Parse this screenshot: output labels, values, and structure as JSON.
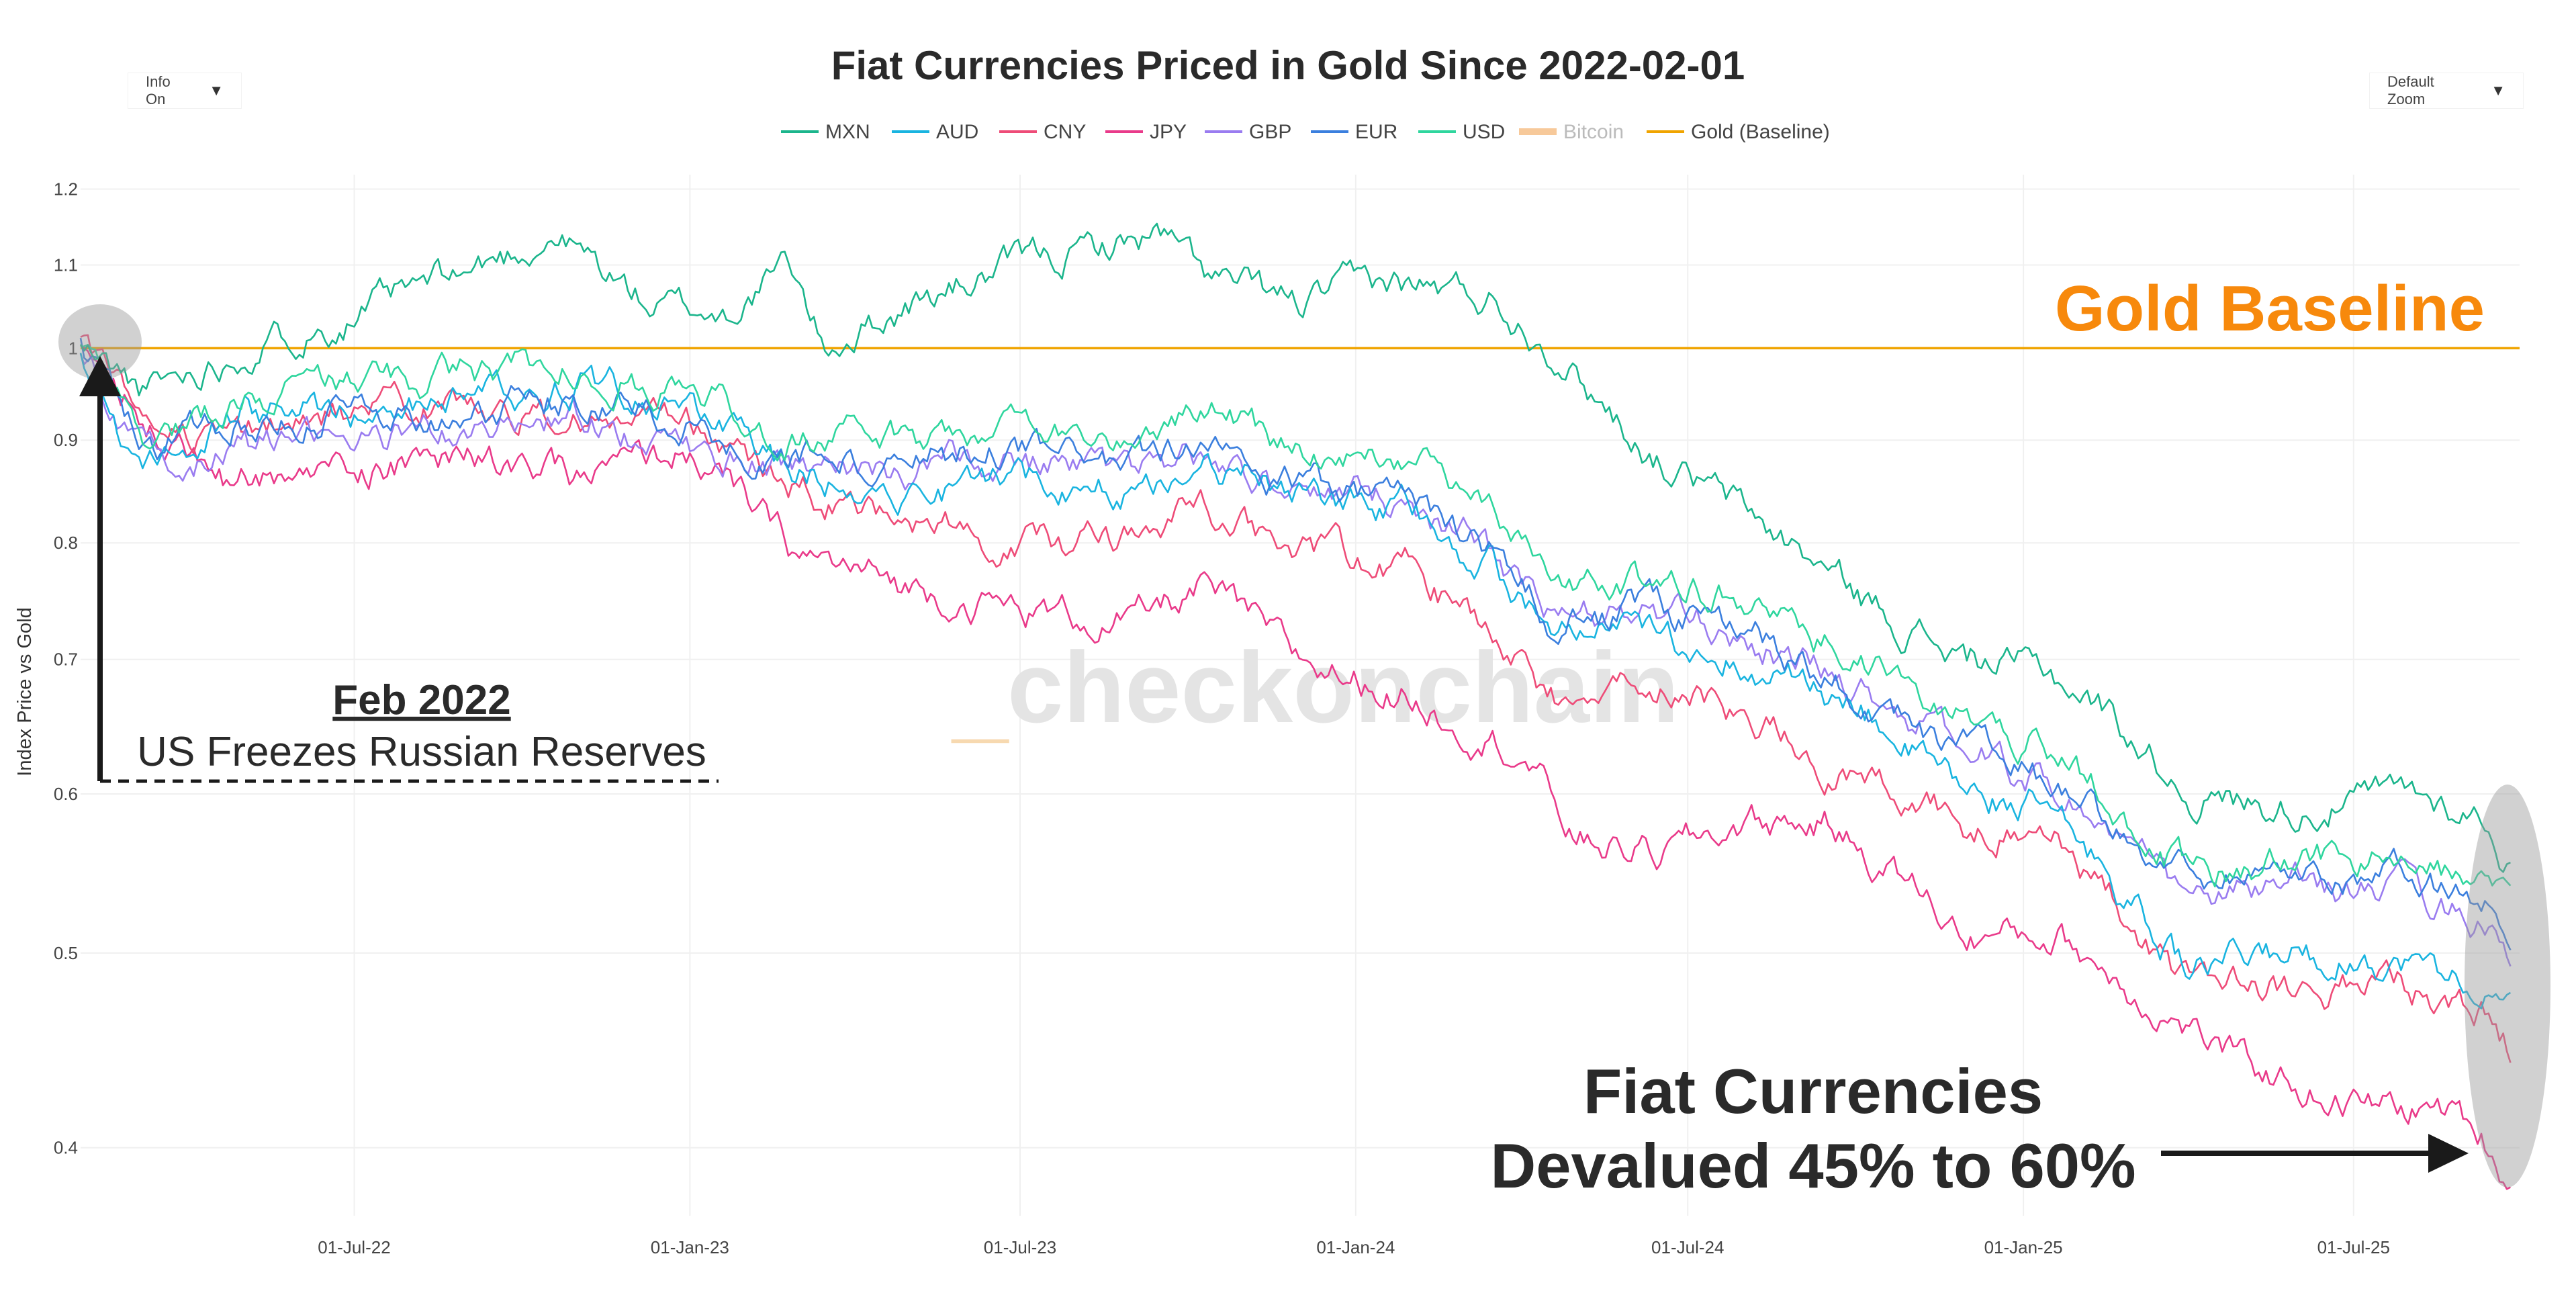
{
  "controls": {
    "info_label": "Info On",
    "zoom_label": "Default Zoom",
    "caret": "▼"
  },
  "chart_data": {
    "type": "line",
    "title": "Fiat Currencies Priced in Gold Since 2022-02-01",
    "xlabel": "",
    "ylabel": "Index Price vs Gold",
    "y_scale": "log",
    "ylim": [
      0.37,
      1.22
    ],
    "xlim": [
      "2022-02-01",
      "2025-09-30"
    ],
    "x_ticks": [
      {
        "date": "2022-07-01",
        "label": "01-Jul-22"
      },
      {
        "date": "2023-01-01",
        "label": "01-Jan-23"
      },
      {
        "date": "2023-07-01",
        "label": "01-Jul-23"
      },
      {
        "date": "2024-01-01",
        "label": "01-Jan-24"
      },
      {
        "date": "2024-07-01",
        "label": "01-Jul-24"
      },
      {
        "date": "2025-01-01",
        "label": "01-Jan-25"
      },
      {
        "date": "2025-07-01",
        "label": "01-Jul-25"
      }
    ],
    "y_ticks": [
      {
        "value": 1.2,
        "label": "1.2"
      },
      {
        "value": 1.1,
        "label": "1.1"
      },
      {
        "value": 1.0,
        "label": "1"
      },
      {
        "value": 0.9,
        "label": "0.9"
      },
      {
        "value": 0.8,
        "label": "0.8"
      },
      {
        "value": 0.7,
        "label": "0.7"
      },
      {
        "value": 0.6,
        "label": "0.6"
      },
      {
        "value": 0.5,
        "label": "0.5"
      },
      {
        "value": 0.4,
        "label": "0.4"
      }
    ],
    "series": [
      {
        "name": "MXN",
        "color": "#1bb58c",
        "seed": 11,
        "points": [
          [
            "2022-02-01",
            1.0
          ],
          [
            "2022-03-08",
            0.95
          ],
          [
            "2022-05-01",
            1.0
          ],
          [
            "2022-07-01",
            1.04
          ],
          [
            "2022-09-01",
            1.09
          ],
          [
            "2022-10-20",
            1.14
          ],
          [
            "2022-12-10",
            1.05
          ],
          [
            "2023-01-20",
            1.04
          ],
          [
            "2023-02-25",
            1.1
          ],
          [
            "2023-03-15",
            1.0
          ],
          [
            "2023-05-01",
            1.05
          ],
          [
            "2023-07-01",
            1.1
          ],
          [
            "2023-09-15",
            1.14
          ],
          [
            "2023-10-15",
            1.08
          ],
          [
            "2023-12-01",
            1.05
          ],
          [
            "2024-01-15",
            1.08
          ],
          [
            "2024-02-15",
            1.07
          ],
          [
            "2024-03-15",
            1.06
          ],
          [
            "2024-04-20",
            1.0
          ],
          [
            "2024-05-10",
            0.95
          ],
          [
            "2024-06-15",
            0.88
          ],
          [
            "2024-08-01",
            0.83
          ],
          [
            "2024-10-15",
            0.74
          ],
          [
            "2024-12-01",
            0.7
          ],
          [
            "2025-01-15",
            0.69
          ],
          [
            "2025-02-15",
            0.66
          ],
          [
            "2025-04-01",
            0.6
          ],
          [
            "2025-06-01",
            0.59
          ],
          [
            "2025-08-01",
            0.6
          ],
          [
            "2025-09-10",
            0.585
          ],
          [
            "2025-09-26",
            0.55
          ]
        ]
      },
      {
        "name": "AUD",
        "color": "#19b4e0",
        "seed": 22,
        "points": [
          [
            "2022-02-01",
            1.0
          ],
          [
            "2022-03-08",
            0.87
          ],
          [
            "2022-05-01",
            0.93
          ],
          [
            "2022-07-01",
            0.93
          ],
          [
            "2022-09-01",
            0.95
          ],
          [
            "2022-11-01",
            0.96
          ],
          [
            "2023-01-01",
            0.93
          ],
          [
            "2023-03-01",
            0.87
          ],
          [
            "2023-05-01",
            0.85
          ],
          [
            "2023-07-01",
            0.86
          ],
          [
            "2023-09-01",
            0.85
          ],
          [
            "2023-10-10",
            0.88
          ],
          [
            "2023-12-01",
            0.84
          ],
          [
            "2024-02-01",
            0.83
          ],
          [
            "2024-03-15",
            0.78
          ],
          [
            "2024-04-20",
            0.72
          ],
          [
            "2024-06-01",
            0.72
          ],
          [
            "2024-08-01",
            0.7
          ],
          [
            "2024-10-15",
            0.65
          ],
          [
            "2024-12-01",
            0.6
          ],
          [
            "2025-01-10",
            0.59
          ],
          [
            "2025-02-15",
            0.55
          ],
          [
            "2025-04-01",
            0.49
          ],
          [
            "2025-06-01",
            0.5
          ],
          [
            "2025-08-01",
            0.495
          ],
          [
            "2025-09-10",
            0.48
          ],
          [
            "2025-09-26",
            0.465
          ]
        ]
      },
      {
        "name": "CNY",
        "color": "#ee4c78",
        "seed": 33,
        "points": [
          [
            "2022-02-01",
            1.0
          ],
          [
            "2022-03-08",
            0.92
          ],
          [
            "2022-05-01",
            0.9
          ],
          [
            "2022-07-01",
            0.93
          ],
          [
            "2022-09-01",
            0.94
          ],
          [
            "2022-11-01",
            0.92
          ],
          [
            "2023-01-01",
            0.91
          ],
          [
            "2023-03-01",
            0.85
          ],
          [
            "2023-05-01",
            0.82
          ],
          [
            "2023-07-01",
            0.8
          ],
          [
            "2023-09-01",
            0.8
          ],
          [
            "2023-10-10",
            0.84
          ],
          [
            "2023-12-01",
            0.79
          ],
          [
            "2024-02-01",
            0.78
          ],
          [
            "2024-03-15",
            0.72
          ],
          [
            "2024-04-20",
            0.67
          ],
          [
            "2024-06-01",
            0.68
          ],
          [
            "2024-08-01",
            0.66
          ],
          [
            "2024-10-15",
            0.6
          ],
          [
            "2024-12-01",
            0.58
          ],
          [
            "2025-01-10",
            0.58
          ],
          [
            "2025-02-15",
            0.54
          ],
          [
            "2025-04-01",
            0.48
          ],
          [
            "2025-06-01",
            0.48
          ],
          [
            "2025-08-01",
            0.48
          ],
          [
            "2025-09-10",
            0.465
          ],
          [
            "2025-09-26",
            0.445
          ]
        ]
      },
      {
        "name": "JPY",
        "color": "#e93a8a",
        "seed": 44,
        "points": [
          [
            "2022-02-01",
            1.0
          ],
          [
            "2022-03-08",
            0.93
          ],
          [
            "2022-04-20",
            0.86
          ],
          [
            "2022-07-01",
            0.87
          ],
          [
            "2022-09-01",
            0.88
          ],
          [
            "2022-11-01",
            0.86
          ],
          [
            "2023-01-01",
            0.89
          ],
          [
            "2023-03-01",
            0.79
          ],
          [
            "2023-05-01",
            0.76
          ],
          [
            "2023-07-01",
            0.74
          ],
          [
            "2023-09-01",
            0.73
          ],
          [
            "2023-10-10",
            0.76
          ],
          [
            "2023-12-01",
            0.7
          ],
          [
            "2024-02-01",
            0.67
          ],
          [
            "2024-04-01",
            0.63
          ],
          [
            "2024-05-01",
            0.57
          ],
          [
            "2024-06-15",
            0.56
          ],
          [
            "2024-08-01",
            0.58
          ],
          [
            "2024-09-15",
            0.58
          ],
          [
            "2024-11-01",
            0.54
          ],
          [
            "2024-12-01",
            0.51
          ],
          [
            "2025-01-20",
            0.51
          ],
          [
            "2025-03-01",
            0.48
          ],
          [
            "2025-05-01",
            0.44
          ],
          [
            "2025-07-01",
            0.42
          ],
          [
            "2025-08-20",
            0.418
          ],
          [
            "2025-09-10",
            0.405
          ],
          [
            "2025-09-26",
            0.383
          ]
        ]
      },
      {
        "name": "GBP",
        "color": "#9a7cf0",
        "seed": 55,
        "points": [
          [
            "2022-02-01",
            1.0
          ],
          [
            "2022-03-08",
            0.88
          ],
          [
            "2022-05-01",
            0.89
          ],
          [
            "2022-07-01",
            0.9
          ],
          [
            "2022-09-01",
            0.91
          ],
          [
            "2022-11-01",
            0.92
          ],
          [
            "2023-01-01",
            0.89
          ],
          [
            "2023-03-01",
            0.87
          ],
          [
            "2023-05-01",
            0.87
          ],
          [
            "2023-07-01",
            0.88
          ],
          [
            "2023-09-01",
            0.86
          ],
          [
            "2023-10-10",
            0.88
          ],
          [
            "2023-12-01",
            0.85
          ],
          [
            "2024-02-01",
            0.84
          ],
          [
            "2024-03-15",
            0.79
          ],
          [
            "2024-04-20",
            0.73
          ],
          [
            "2024-06-01",
            0.74
          ],
          [
            "2024-08-01",
            0.72
          ],
          [
            "2024-10-15",
            0.67
          ],
          [
            "2024-12-01",
            0.63
          ],
          [
            "2025-01-10",
            0.61
          ],
          [
            "2025-02-15",
            0.58
          ],
          [
            "2025-04-01",
            0.53
          ],
          [
            "2025-06-01",
            0.54
          ],
          [
            "2025-08-01",
            0.535
          ],
          [
            "2025-09-10",
            0.52
          ],
          [
            "2025-09-26",
            0.5
          ]
        ]
      },
      {
        "name": "EUR",
        "color": "#3b7fde",
        "seed": 66,
        "points": [
          [
            "2022-02-01",
            1.0
          ],
          [
            "2022-03-08",
            0.89
          ],
          [
            "2022-05-01",
            0.92
          ],
          [
            "2022-07-01",
            0.93
          ],
          [
            "2022-09-01",
            0.93
          ],
          [
            "2022-11-01",
            0.95
          ],
          [
            "2023-01-01",
            0.92
          ],
          [
            "2023-03-01",
            0.88
          ],
          [
            "2023-05-01",
            0.88
          ],
          [
            "2023-07-01",
            0.89
          ],
          [
            "2023-09-01",
            0.87
          ],
          [
            "2023-10-10",
            0.89
          ],
          [
            "2023-12-01",
            0.85
          ],
          [
            "2024-02-01",
            0.84
          ],
          [
            "2024-03-15",
            0.79
          ],
          [
            "2024-04-20",
            0.73
          ],
          [
            "2024-06-01",
            0.74
          ],
          [
            "2024-08-01",
            0.73
          ],
          [
            "2024-10-15",
            0.66
          ],
          [
            "2024-12-01",
            0.63
          ],
          [
            "2025-01-10",
            0.61
          ],
          [
            "2025-02-15",
            0.58
          ],
          [
            "2025-04-01",
            0.55
          ],
          [
            "2025-06-01",
            0.55
          ],
          [
            "2025-08-01",
            0.545
          ],
          [
            "2025-09-10",
            0.53
          ],
          [
            "2025-09-26",
            0.512
          ]
        ]
      },
      {
        "name": "USD",
        "color": "#2fd69e",
        "seed": 77,
        "points": [
          [
            "2022-02-01",
            1.0
          ],
          [
            "2022-03-08",
            0.9
          ],
          [
            "2022-05-01",
            0.95
          ],
          [
            "2022-07-01",
            0.96
          ],
          [
            "2022-09-01",
            0.97
          ],
          [
            "2022-11-01",
            0.98
          ],
          [
            "2023-01-01",
            0.95
          ],
          [
            "2023-03-01",
            0.9
          ],
          [
            "2023-05-01",
            0.9
          ],
          [
            "2023-07-01",
            0.92
          ],
          [
            "2023-09-01",
            0.9
          ],
          [
            "2023-10-10",
            0.94
          ],
          [
            "2023-12-01",
            0.89
          ],
          [
            "2024-02-01",
            0.89
          ],
          [
            "2024-03-15",
            0.83
          ],
          [
            "2024-04-20",
            0.76
          ],
          [
            "2024-06-01",
            0.77
          ],
          [
            "2024-08-01",
            0.75
          ],
          [
            "2024-10-15",
            0.69
          ],
          [
            "2024-12-01",
            0.65
          ],
          [
            "2025-01-10",
            0.64
          ],
          [
            "2025-02-15",
            0.6
          ],
          [
            "2025-04-01",
            0.55
          ],
          [
            "2025-06-01",
            0.555
          ],
          [
            "2025-08-01",
            0.555
          ],
          [
            "2025-09-10",
            0.54
          ],
          [
            "2025-09-26",
            0.525
          ]
        ]
      },
      {
        "name": "Bitcoin",
        "color": "#f7c99a",
        "hidden": true,
        "points": []
      },
      {
        "name": "Gold (Baseline)",
        "color": "#f0a400",
        "points": [
          [
            "2022-02-01",
            1.0
          ],
          [
            "2025-09-30",
            1.0
          ]
        ]
      }
    ],
    "annotations": {
      "gold_baseline": {
        "text": "Gold Baseline",
        "color": "#f7890c"
      },
      "feb_2022": {
        "title": "Feb 2022",
        "subtitle": "US Freezes Russian Reserves"
      },
      "devalued": {
        "line1": "Fiat Currencies",
        "line2": "Devalued 45% to 60%"
      },
      "watermark": {
        "prefix": "_",
        "text": "checkonchain",
        "prefix_color": "#f7d9b0"
      }
    }
  }
}
